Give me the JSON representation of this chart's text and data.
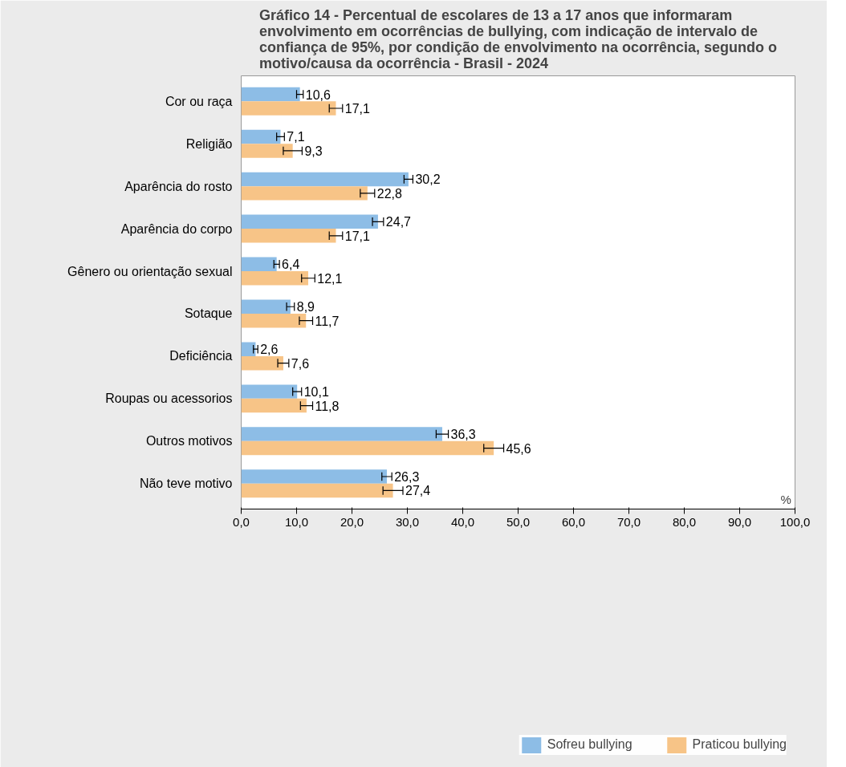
{
  "chart_data": {
    "type": "bar",
    "orientation": "horizontal",
    "title": "Gráfico 14 - Percentual de escolares de 13 a 17 anos que informaram envolvimento em ocorrências de bullying, com indicação de intervalo de confiança de 95%, por condição de envolvimento na ocorrência, segundo o motivo/causa da ocorrência - Brasil - 2024",
    "xlabel": "%",
    "categories": [
      "Cor ou raça",
      "Religião",
      "Aparência do rosto",
      "Aparência do corpo",
      "Gênero ou orientação sexual",
      "Sotaque",
      "Deficiência",
      "Roupas ou acessorios",
      "Outros motivos",
      "Não teve motivo"
    ],
    "series": [
      {
        "name": "Sofreu bullying",
        "color": "#8dbde6",
        "values": [
          10.6,
          7.1,
          30.2,
          24.7,
          6.4,
          8.9,
          2.6,
          10.1,
          36.3,
          26.3
        ],
        "errors": [
          0.6,
          0.7,
          0.8,
          1.0,
          0.5,
          0.7,
          0.4,
          0.8,
          1.1,
          0.9
        ],
        "value_labels": [
          "10,6",
          "7,1",
          "30,2",
          "24,7",
          "6,4",
          "8,9",
          "2,6",
          "10,1",
          "36,3",
          "26,3"
        ]
      },
      {
        "name": "Praticou bullying",
        "color": "#f7c487",
        "values": [
          17.1,
          9.3,
          22.8,
          17.1,
          12.1,
          11.7,
          7.6,
          11.8,
          45.6,
          27.4
        ],
        "errors": [
          1.2,
          1.7,
          1.3,
          1.2,
          1.2,
          1.2,
          1.0,
          1.1,
          1.8,
          1.8
        ],
        "value_labels": [
          "17,1",
          "9,3",
          "22,8",
          "17,1",
          "12,1",
          "11,7",
          "7,6",
          "11,8",
          "45,6",
          "27,4"
        ]
      }
    ],
    "xlim": [
      0,
      100
    ],
    "xticks": [
      {
        "value": 0,
        "label": "0,0"
      },
      {
        "value": 10,
        "label": "10,0"
      },
      {
        "value": 20,
        "label": "20,0"
      },
      {
        "value": 30,
        "label": "30,0"
      },
      {
        "value": 40,
        "label": "40,0"
      },
      {
        "value": 50,
        "label": "50,0"
      },
      {
        "value": 60,
        "label": "60,0"
      },
      {
        "value": 70,
        "label": "70,0"
      },
      {
        "value": 80,
        "label": "80,0"
      },
      {
        "value": 90,
        "label": "90,0"
      },
      {
        "value": 100,
        "label": "100,0"
      }
    ],
    "grid": false,
    "legend": "bottom"
  }
}
